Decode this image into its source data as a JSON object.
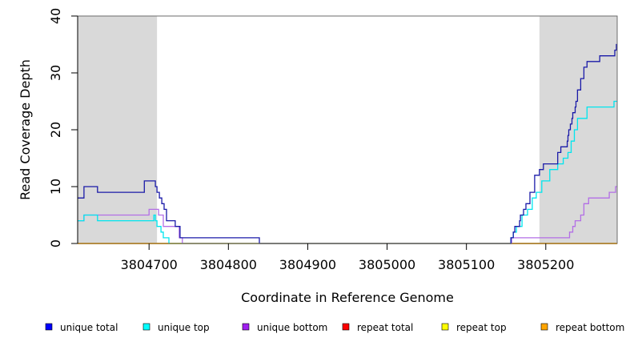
{
  "chart_data": {
    "type": "line",
    "style": "step",
    "title": "",
    "xlabel": "Coordinate in Reference Genome",
    "ylabel": "Read Coverage Depth",
    "xlim": [
      3804610,
      3805290
    ],
    "ylim": [
      0,
      40
    ],
    "xticks": [
      3804700,
      3804800,
      3804900,
      3805000,
      3805100,
      3805200
    ],
    "yticks": [
      0,
      10,
      20,
      30,
      40
    ],
    "grid": false,
    "legend_position": "bottom",
    "shaded_regions": [
      {
        "x_start": 3804610,
        "x_end": 3804710,
        "color": "#d9d9d9"
      },
      {
        "x_start": 3805192,
        "x_end": 3805290,
        "color": "#d9d9d9"
      }
    ],
    "series": [
      {
        "name": "unique total",
        "color": "#0000ff",
        "line_color": "#1a1aa8",
        "x": [
          3804610,
          3804618,
          3804635,
          3804694,
          3804706,
          3804708,
          3804710,
          3804713,
          3804716,
          3804719,
          3804722,
          3804723,
          3804733,
          3804735,
          3804739,
          3804824,
          3804826,
          3804839,
          3805155,
          3805156,
          3805157,
          3805159,
          3805161,
          3805166,
          3805167,
          3805168,
          3805172,
          3805175,
          3805180,
          3805184,
          3805186,
          3805192,
          3805197,
          3805204,
          3805205,
          3805215,
          3805219,
          3805227,
          3805228,
          3805229,
          3805231,
          3805233,
          3805234,
          3805235,
          3805237,
          3805238,
          3805240,
          3805244,
          3805248,
          3805252,
          3805256,
          3805260,
          3805264,
          3805268,
          3805276,
          3805287,
          3805289,
          3805290
        ],
        "y": [
          8,
          10,
          9,
          11,
          11,
          10,
          9,
          8,
          7,
          6,
          4,
          4,
          3,
          3,
          1,
          1,
          1,
          0,
          0,
          1,
          1,
          2,
          3,
          3,
          4,
          5,
          6,
          7,
          9,
          9,
          12,
          13,
          14,
          14,
          14,
          16,
          17,
          18,
          19,
          20,
          21,
          22,
          23,
          23,
          24,
          25,
          27,
          29,
          31,
          32,
          32,
          32,
          32,
          33,
          33,
          34,
          35,
          35
        ]
      },
      {
        "name": "unique top",
        "color": "#00ffff",
        "line_color": "#00e5ee",
        "x": [
          3804610,
          3804618,
          3804635,
          3804700,
          3804706,
          3804708,
          3804710,
          3804712,
          3804715,
          3804718,
          3804721,
          3804725,
          3804735,
          3805156,
          3805159,
          3805163,
          3805170,
          3805177,
          3805183,
          3805188,
          3805195,
          3805205,
          3805215,
          3805222,
          3805228,
          3805232,
          3805236,
          3805240,
          3805248,
          3805252,
          3805256,
          3805260,
          3805280,
          3805286,
          3805290
        ],
        "y": [
          4,
          5,
          4,
          4,
          5,
          4,
          3,
          3,
          2,
          1,
          1,
          0,
          0,
          1,
          2,
          3,
          5,
          6,
          8,
          9,
          11,
          13,
          14,
          15,
          16,
          18,
          20,
          22,
          22,
          24,
          24,
          24,
          24,
          25,
          25
        ]
      },
      {
        "name": "unique bottom",
        "color": "#a020f0",
        "line_color": "#b36ee6",
        "x": [
          3804610,
          3804618,
          3804635,
          3804700,
          3804712,
          3804718,
          3804723,
          3804738,
          3804742,
          3805155,
          3805157,
          3805168,
          3805190,
          3805200,
          3805225,
          3805230,
          3805234,
          3805237,
          3805238,
          3805244,
          3805248,
          3805254,
          3805260,
          3805268,
          3805280,
          3805288,
          3805290
        ],
        "y": [
          4,
          5,
          5,
          6,
          5,
          3,
          3,
          1,
          0,
          0,
          1,
          1,
          1,
          1,
          1,
          2,
          3,
          4,
          4,
          5,
          7,
          8,
          8,
          8,
          9,
          10,
          10
        ]
      },
      {
        "name": "repeat total",
        "color": "#ff0000",
        "line_color": "#ff0000",
        "x": [
          3804610,
          3805290
        ],
        "y": [
          0,
          0
        ]
      },
      {
        "name": "repeat top",
        "color": "#ffff00",
        "line_color": "#ffff00",
        "x": [
          3804610,
          3805290
        ],
        "y": [
          0,
          0
        ]
      },
      {
        "name": "repeat bottom",
        "color": "#ffa500",
        "line_color": "#ffa500",
        "x": [
          3804610,
          3805290
        ],
        "y": [
          0,
          0
        ]
      }
    ]
  }
}
